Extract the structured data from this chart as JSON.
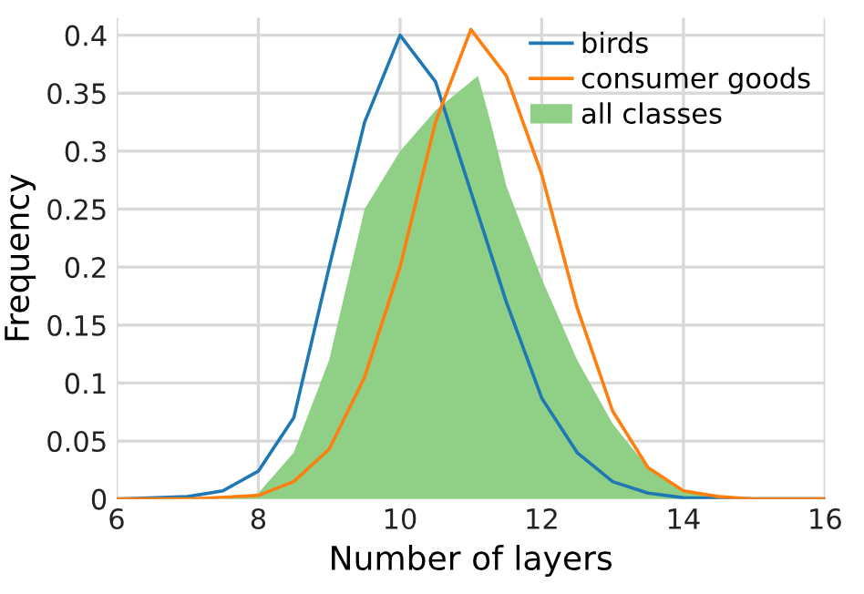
{
  "chart_data": {
    "type": "line",
    "xlabel": "Number of layers",
    "ylabel": "Frequency",
    "xlim": [
      6,
      16
    ],
    "ylim": [
      0,
      0.415
    ],
    "xticks": [
      6,
      8,
      10,
      12,
      14,
      16
    ],
    "yticks": [
      0,
      0.05,
      0.1,
      0.15,
      0.2,
      0.25,
      0.3,
      0.35,
      0.4
    ],
    "grid": true,
    "legend": "top right",
    "series": [
      {
        "name": "birds",
        "color": "#1f77b4",
        "x": [
          6,
          7,
          7.5,
          8,
          8.5,
          9,
          9.5,
          10,
          10.5,
          11,
          11.5,
          12,
          12.5,
          13,
          13.5,
          14,
          15,
          16
        ],
        "values": [
          0,
          0.002,
          0.007,
          0.024,
          0.07,
          0.2,
          0.325,
          0.4,
          0.36,
          0.265,
          0.17,
          0.087,
          0.04,
          0.015,
          0.005,
          0.001,
          0,
          0
        ]
      },
      {
        "name": "consumer goods",
        "color": "#ff7f0e",
        "x": [
          6,
          7,
          8,
          8.5,
          9,
          9.5,
          10,
          10.5,
          11,
          11.5,
          12,
          12.5,
          13,
          13.5,
          14,
          14.5,
          15,
          16
        ],
        "values": [
          0,
          0,
          0.003,
          0.015,
          0.043,
          0.105,
          0.2,
          0.325,
          0.405,
          0.365,
          0.28,
          0.165,
          0.076,
          0.027,
          0.007,
          0.002,
          0,
          0
        ]
      },
      {
        "name": "all classes",
        "type": "area",
        "color": "#8fcf86",
        "x": [
          7.5,
          8,
          8.5,
          9,
          9.5,
          10,
          10.5,
          11,
          11.1,
          11.3,
          11.5,
          12,
          12.5,
          13,
          13.5,
          14,
          14.5
        ],
        "values": [
          0,
          0.005,
          0.04,
          0.12,
          0.25,
          0.3,
          0.335,
          0.36,
          0.365,
          0.32,
          0.27,
          0.19,
          0.12,
          0.065,
          0.027,
          0.008,
          0
        ]
      }
    ]
  }
}
